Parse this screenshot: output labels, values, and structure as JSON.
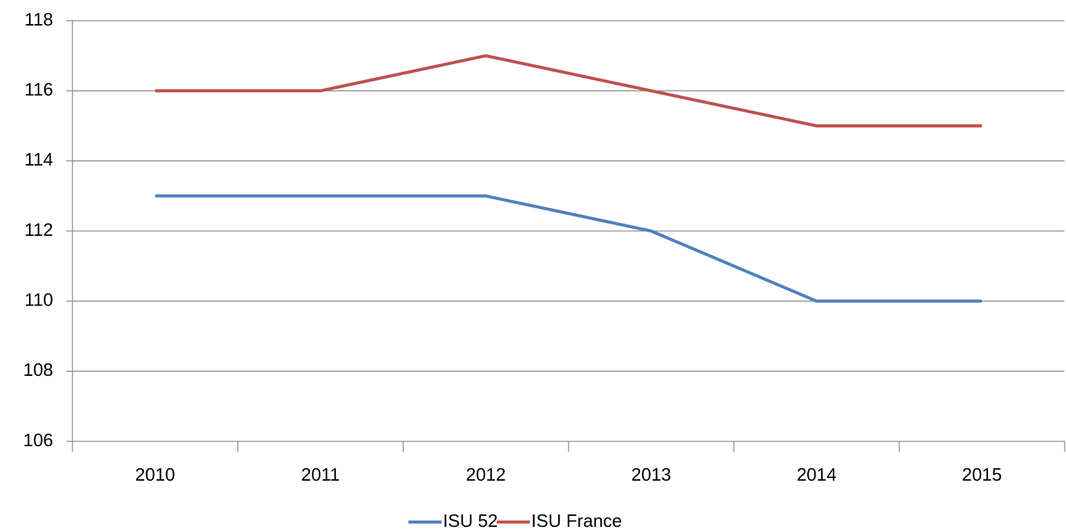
{
  "chart_data": {
    "type": "line",
    "categories": [
      "2010",
      "2011",
      "2012",
      "2013",
      "2014",
      "2015"
    ],
    "series": [
      {
        "name": "ISU 52",
        "color": "#4f81bd",
        "values": [
          113,
          113,
          113,
          112,
          110,
          110
        ]
      },
      {
        "name": "ISU France",
        "color": "#c0504d",
        "values": [
          116,
          116,
          117,
          116,
          115,
          115
        ]
      }
    ],
    "ylim": [
      106,
      118
    ],
    "yticks": [
      106,
      108,
      110,
      112,
      114,
      116,
      118
    ],
    "grid": true,
    "legend": "bottom"
  }
}
